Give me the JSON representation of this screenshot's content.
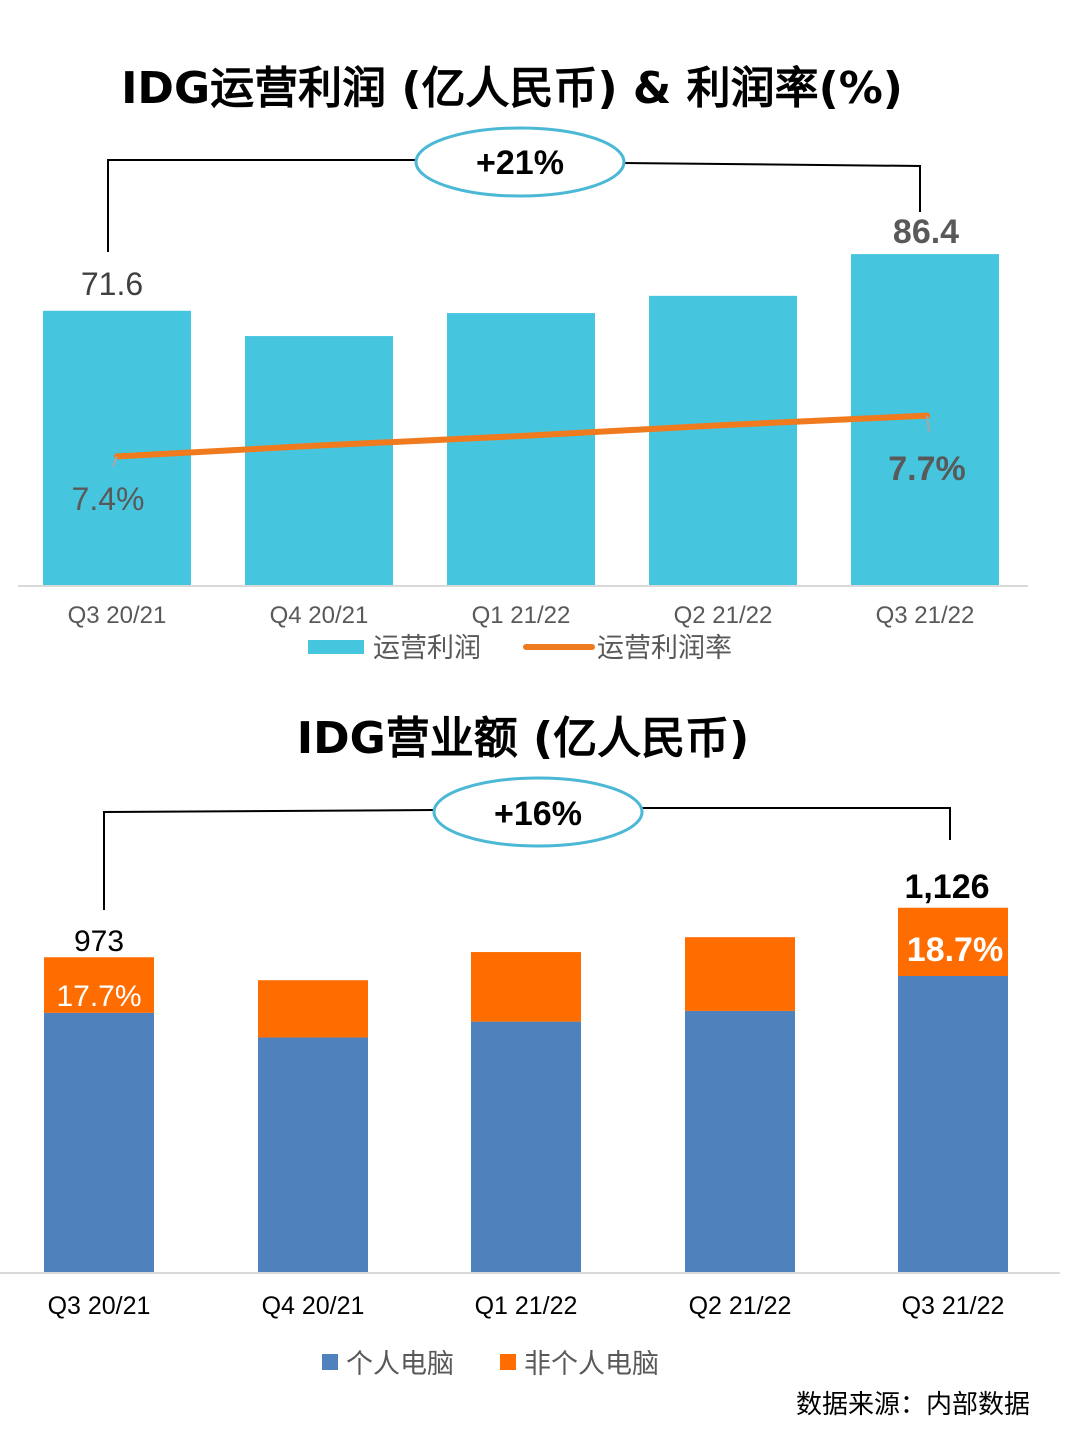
{
  "chart_data": [
    {
      "type": "bar+line",
      "title": "IDG运营利润 (亿人民币) & 利润率(%)",
      "categories": [
        "Q3 20/21",
        "Q4 20/21",
        "Q1 21/22",
        "Q2 21/22",
        "Q3 21/22"
      ],
      "series": [
        {
          "name": "运营利润",
          "type": "bar",
          "values": [
            71.6,
            65.0,
            71.0,
            75.5,
            86.4
          ]
        },
        {
          "name": "运营利润率",
          "type": "line",
          "values": [
            7.4,
            7.48,
            7.55,
            7.63,
            7.7
          ]
        }
      ],
      "data_labels": {
        "first_bar": "71.6",
        "last_bar": "86.4",
        "first_line": "7.4%",
        "last_line": "7.7%"
      },
      "growth_annotation": "+21%",
      "legend_position": "bottom",
      "grid": false,
      "colors": {
        "bar": "#46C6DE",
        "line": "#F07A1E"
      }
    },
    {
      "type": "stacked-bar",
      "title": "IDG营业额 (亿人民币)",
      "categories": [
        "Q3 20/21",
        "Q4 20/21",
        "Q1 21/22",
        "Q2 21/22",
        "Q3 21/22"
      ],
      "series": [
        {
          "name": "个人电脑",
          "values": [
            801,
            725,
            774,
            807,
            915
          ]
        },
        {
          "name": "非个人电脑",
          "values": [
            172,
            177,
            215,
            228,
            211
          ]
        }
      ],
      "data_labels": {
        "first_total": "973",
        "last_total": "1,126",
        "first_share": "17.7%",
        "last_share": "18.7%"
      },
      "growth_annotation": "+16%",
      "legend_position": "bottom",
      "grid": false,
      "colors": {
        "pc": "#4F81BD",
        "non_pc": "#FF6D00"
      }
    }
  ],
  "source_note": "数据来源：内部数据"
}
